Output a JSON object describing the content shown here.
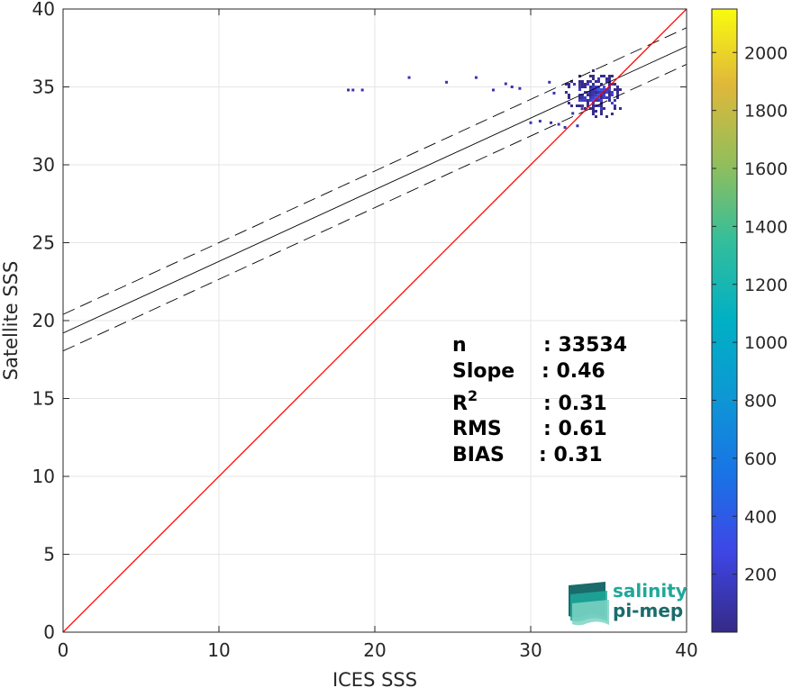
{
  "chart_data": {
    "type": "scatter",
    "subtype": "2d-density-histogram",
    "xlabel": "ICES SSS",
    "ylabel": "Satellite SSS",
    "xlim": [
      0,
      40
    ],
    "ylim": [
      0,
      40
    ],
    "xticks": [
      "0",
      "10",
      "20",
      "30",
      "40"
    ],
    "yticks": [
      "0",
      "5",
      "10",
      "15",
      "20",
      "25",
      "30",
      "35",
      "40"
    ],
    "grid": true,
    "identity_line": {
      "color": "#ff0000",
      "from": [
        0,
        0
      ],
      "to": [
        40,
        40
      ]
    },
    "fit_line": {
      "slope": 0.46,
      "intercept": 19.2,
      "color": "#000000"
    },
    "fit_bounds": [
      {
        "slope": 0.46,
        "intercept": 20.4
      },
      {
        "slope": 0.46,
        "intercept": 18.05
      }
    ],
    "colorbar": {
      "min": 0,
      "max": 2150,
      "ticks": [
        "200",
        "400",
        "600",
        "800",
        "1000",
        "1200",
        "1400",
        "1600",
        "1800",
        "2000"
      ],
      "colormap": "parula"
    },
    "points": [
      [
        18.3,
        34.8
      ],
      [
        18.6,
        34.8
      ],
      [
        19.2,
        34.8
      ],
      [
        22.2,
        35.6
      ],
      [
        24.6,
        35.3
      ],
      [
        26.5,
        35.6
      ],
      [
        27.6,
        34.8
      ],
      [
        28.4,
        35.2
      ],
      [
        28.8,
        35.0
      ],
      [
        29.3,
        34.9
      ],
      [
        31.2,
        35.3
      ],
      [
        31.5,
        34.6
      ],
      [
        30.0,
        32.7
      ],
      [
        30.6,
        32.8
      ],
      [
        31.3,
        32.7
      ],
      [
        31.8,
        32.6
      ],
      [
        32.2,
        32.4
      ],
      [
        33.0,
        32.5
      ],
      [
        32.7,
        33.3
      ],
      [
        33.3,
        33.6
      ]
    ],
    "cluster": {
      "x_range": [
        31.5,
        35.8
      ],
      "y_range": [
        32.8,
        36.3
      ],
      "peak": [
        34.2,
        34.6
      ]
    }
  },
  "stats": {
    "n_label": "n",
    "n_value": ": 33534",
    "slope_label": "Slope",
    "slope_value": ": 0.46",
    "r2_label": "R",
    "r2_sup": "2",
    "r2_value": ": 0.31",
    "rms_label": "RMS",
    "rms_value": ": 0.61",
    "bias_label": "BIAS",
    "bias_value": ": 0.31"
  },
  "logo": {
    "line1": "salinity",
    "line2": "pi-mep",
    "color1": "#1fa89a",
    "color2": "#1a6b6a"
  }
}
